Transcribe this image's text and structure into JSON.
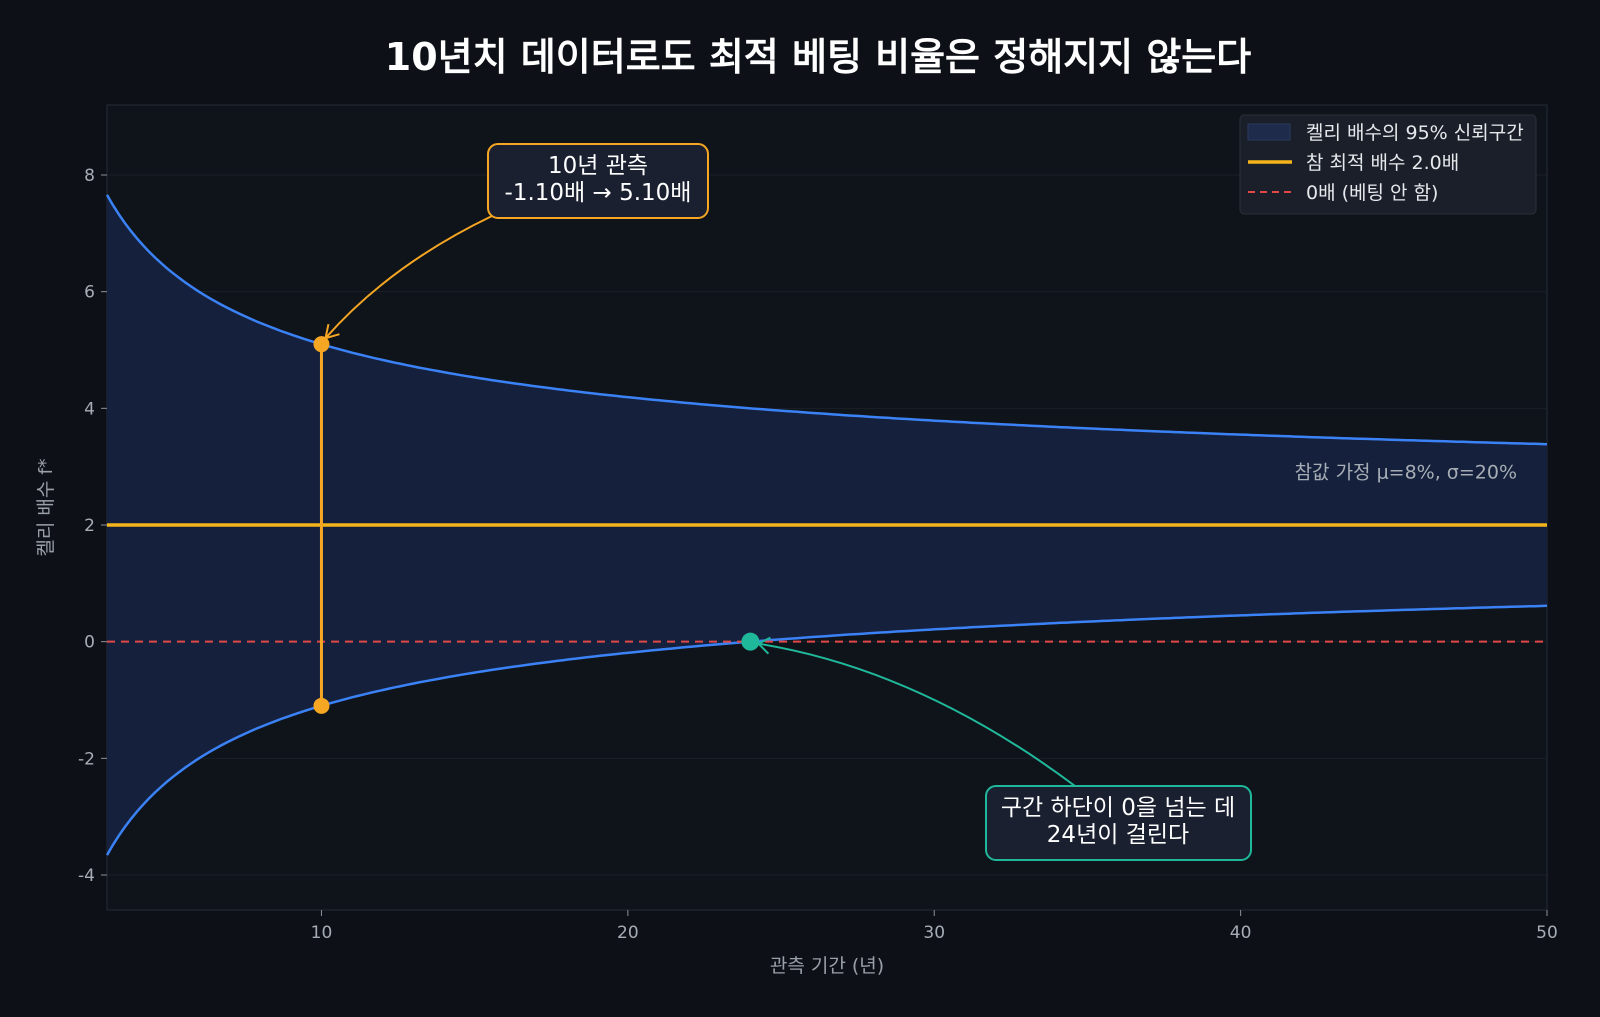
{
  "chart_data": {
    "type": "line",
    "title": "10년치 데이터로도 최적 베팅 비율은 정해지지 않는다",
    "xlabel": "관측 기간 (년)",
    "ylabel": "켈리 배수 f*",
    "xlim": [
      3,
      50
    ],
    "ylim": [
      -4.6,
      9.2
    ],
    "xticks": [
      10,
      20,
      30,
      40,
      50
    ],
    "yticks": [
      -4,
      -2,
      0,
      2,
      4,
      6,
      8
    ],
    "grid": true,
    "legend_position": "top-right",
    "assumption": {
      "mu": 0.08,
      "sigma": 0.2
    },
    "assumption_text": "참값 가정  μ=8%,  σ=20%",
    "series": [
      {
        "name": "켈리 배수의 95% 신뢰구간",
        "kind": "band",
        "center": 2.0,
        "halfwidth_formula": "1.96 / (sigma * sqrt(T))",
        "color": "#3b82f6",
        "fill": "#15213c"
      },
      {
        "name": "참 최적 배수 2.0배",
        "kind": "hline",
        "y": 2.0,
        "color": "#f4b41a"
      },
      {
        "name": "0배 (베팅 안 함)",
        "kind": "hline-dashed",
        "y": 0,
        "color": "#e04848"
      }
    ],
    "annotations": [
      {
        "id": "ten-year",
        "x": 10,
        "y_low": -1.1,
        "y_high": 5.1,
        "lines": [
          "10년 관측",
          "-1.10배  →  5.10배"
        ],
        "color": "#f5a623"
      },
      {
        "id": "crossing",
        "x": 24,
        "y": 0,
        "lines": [
          "구간 하단이 0을 넘는 데",
          "24년이 걸린다"
        ],
        "color": "#20b89a"
      }
    ]
  }
}
